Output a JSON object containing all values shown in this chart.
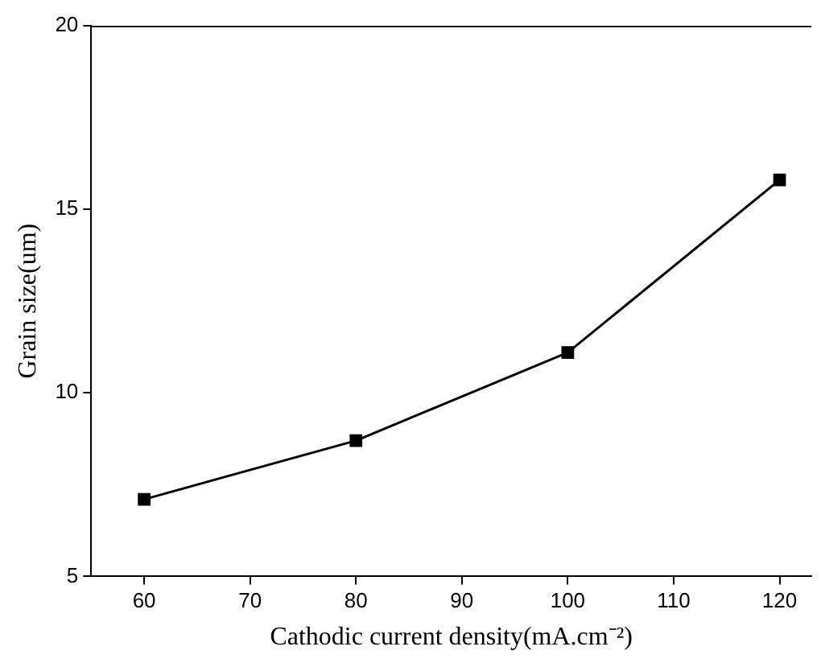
{
  "chart_data": {
    "type": "line",
    "xlabel": "Cathodic current density(mA.cm⁻²)",
    "ylabel": "Grain size(um)",
    "x": [
      60,
      80,
      100,
      120
    ],
    "series": [
      {
        "color": "#000000",
        "values": [
          7.1,
          8.7,
          11.1,
          15.8
        ]
      }
    ],
    "xlim": [
      55,
      123
    ],
    "xticks": [
      60,
      70,
      80,
      90,
      100,
      110,
      120
    ],
    "ylim": [
      5,
      20
    ],
    "yticks": [
      5,
      10,
      15,
      20
    ],
    "marker": "square",
    "line_style": "solid",
    "grid": false,
    "legend": false
  }
}
